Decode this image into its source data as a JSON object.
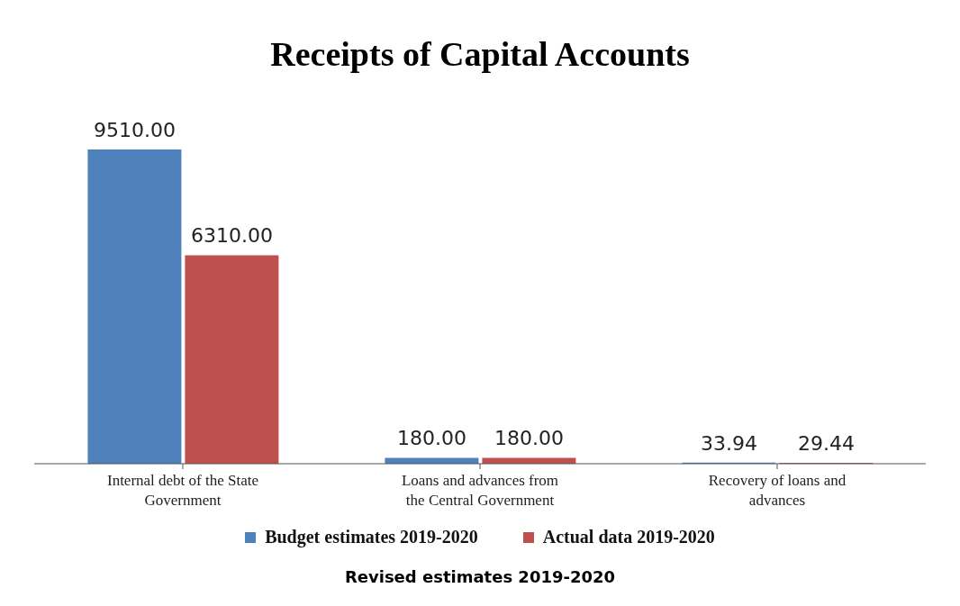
{
  "chart_data": {
    "type": "bar",
    "title": "Receipts of Capital Accounts",
    "categories": [
      "Internal debt of the State Government",
      "Loans and advances from the Central Government",
      "Recovery of loans and advances"
    ],
    "series": [
      {
        "name": "Budget estimates 2019-2020",
        "color": "#4f81bd",
        "values": [
          9510.0,
          180.0,
          33.94
        ],
        "value_labels": [
          "9510.00",
          "180.00",
          "33.94"
        ]
      },
      {
        "name": "Actual data 2019-2020",
        "color": "#c0504d",
        "values": [
          6310.0,
          180.0,
          29.44
        ],
        "value_labels": [
          "6310.00",
          "180.00",
          "29.44"
        ]
      }
    ],
    "grid": false,
    "legend": "bottom",
    "annotations": [
      "Revised estimates 2019-2020"
    ]
  }
}
